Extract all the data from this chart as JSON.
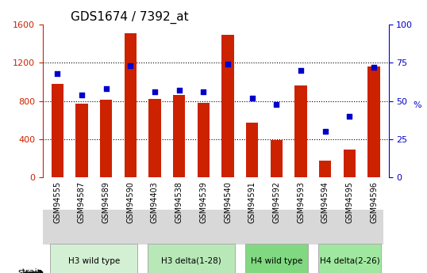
{
  "title": "GDS1674 / 7392_at",
  "samples": [
    "GSM94555",
    "GSM94587",
    "GSM94589",
    "GSM94590",
    "GSM94403",
    "GSM94538",
    "GSM94539",
    "GSM94540",
    "GSM94591",
    "GSM94592",
    "GSM94593",
    "GSM94594",
    "GSM94595",
    "GSM94596"
  ],
  "counts": [
    980,
    770,
    810,
    1510,
    820,
    860,
    780,
    1490,
    570,
    390,
    960,
    175,
    290,
    1160
  ],
  "percentiles": [
    68,
    54,
    58,
    73,
    56,
    57,
    56,
    74,
    52,
    48,
    70,
    30,
    40,
    72
  ],
  "groups": [
    {
      "label": "H3 wild type",
      "start": 0,
      "end": 4,
      "color": "#d4f0d4"
    },
    {
      "label": "H3 delta(1-28)",
      "start": 4,
      "end": 8,
      "color": "#b8e8b8"
    },
    {
      "label": "H4 wild type",
      "start": 8,
      "end": 11,
      "color": "#80d880"
    },
    {
      "label": "H4 delta(2-26)",
      "start": 11,
      "end": 14,
      "color": "#a0e8a0"
    }
  ],
  "ylim_left": [
    0,
    1600
  ],
  "ylim_right": [
    0,
    100
  ],
  "yticks_left": [
    0,
    400,
    800,
    1200,
    1600
  ],
  "yticks_right": [
    0,
    25,
    50,
    75,
    100
  ],
  "bar_color": "#cc2200",
  "dot_color": "#0000cc",
  "left_axis_color": "#cc2200",
  "right_axis_color": "#0000cc",
  "grid_color": "black",
  "bg_color": "#ffffff",
  "legend_count_color": "#cc2200",
  "legend_pct_color": "#0000cc"
}
